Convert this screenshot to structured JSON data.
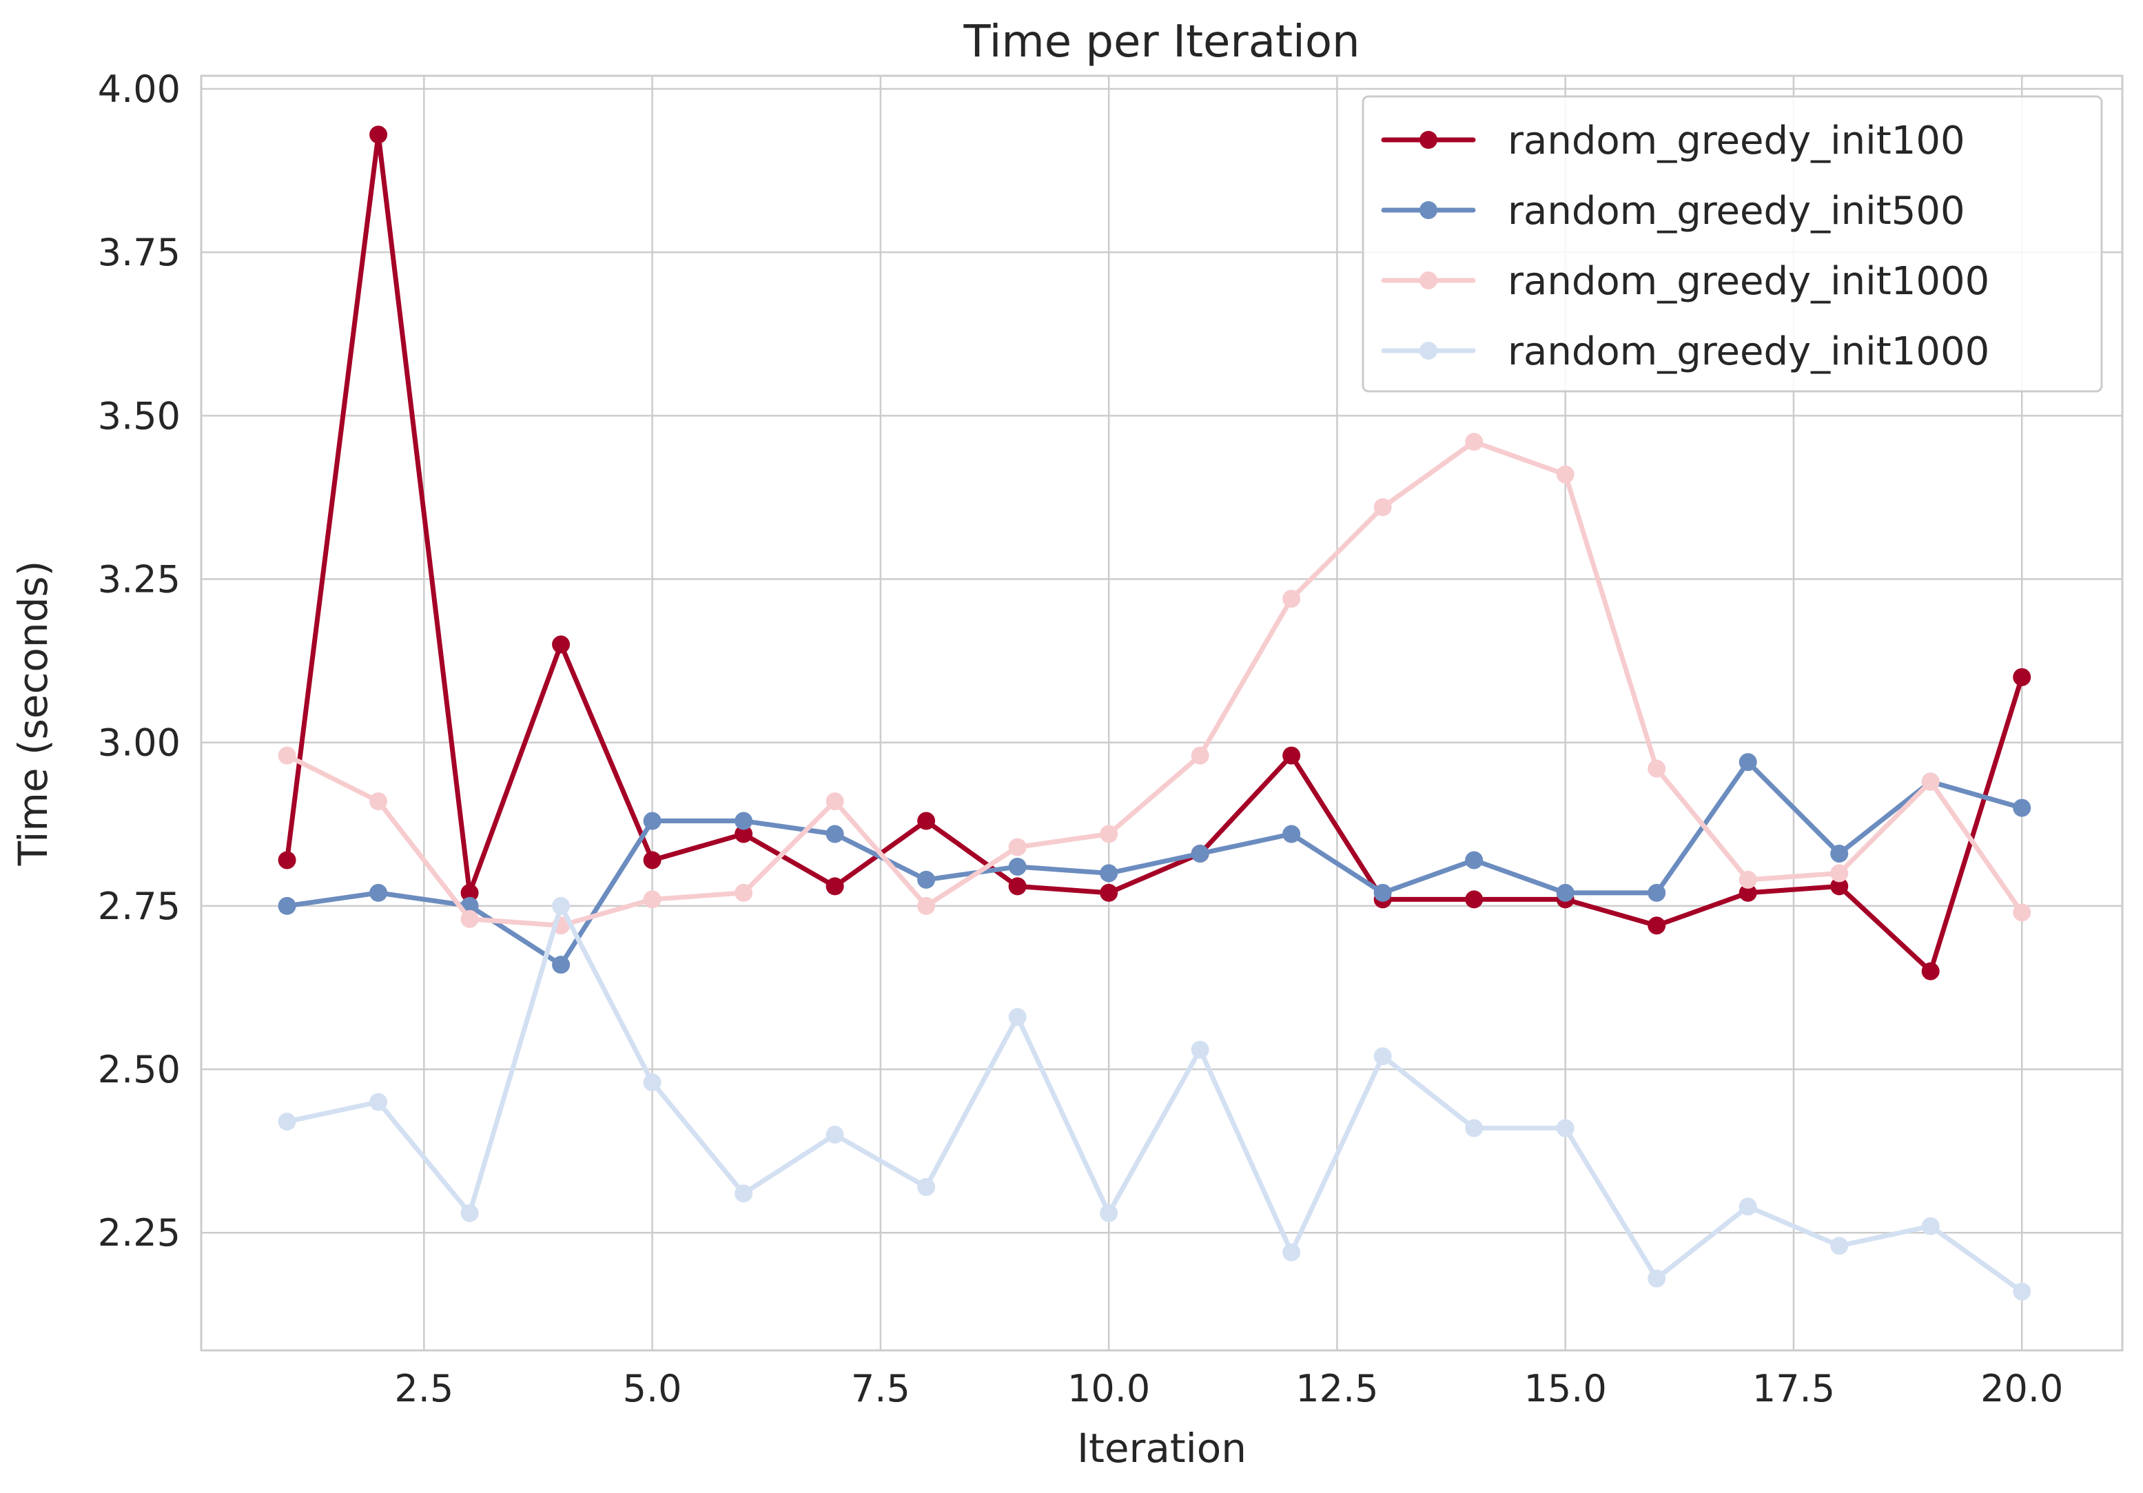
{
  "chart_data": {
    "type": "line",
    "title": "Time per Iteration",
    "xlabel": "Iteration",
    "ylabel": "Time (seconds)",
    "xlim": [
      0.06,
      21.1
    ],
    "ylim": [
      2.07,
      4.02
    ],
    "xticks": [
      2.5,
      5.0,
      7.5,
      10.0,
      12.5,
      15.0,
      17.5,
      20.0
    ],
    "xtick_labels": [
      "2.5",
      "5.0",
      "7.5",
      "10.0",
      "12.5",
      "15.0",
      "17.5",
      "20.0"
    ],
    "yticks": [
      2.25,
      2.5,
      2.75,
      3.0,
      3.25,
      3.5,
      3.75,
      4.0
    ],
    "ytick_labels": [
      "2.25",
      "2.50",
      "2.75",
      "3.00",
      "3.25",
      "3.50",
      "3.75",
      "4.00"
    ],
    "grid": true,
    "legend_position": "top-right",
    "x": [
      1,
      2,
      3,
      4,
      5,
      6,
      7,
      8,
      9,
      10,
      11,
      12,
      13,
      14,
      15,
      16,
      17,
      18,
      19,
      20
    ],
    "series": [
      {
        "name": "random_greedy_init100",
        "color": "#a50026",
        "values": [
          2.82,
          3.93,
          2.77,
          3.15,
          2.82,
          2.86,
          2.78,
          2.88,
          2.78,
          2.77,
          2.83,
          2.98,
          2.76,
          2.76,
          2.76,
          2.72,
          2.77,
          2.78,
          2.65,
          3.1
        ]
      },
      {
        "name": "random_greedy_init500",
        "color": "#6b8cbf",
        "values": [
          2.75,
          2.77,
          2.75,
          2.66,
          2.88,
          2.88,
          2.86,
          2.79,
          2.81,
          2.8,
          2.83,
          2.86,
          2.77,
          2.82,
          2.77,
          2.77,
          2.97,
          2.83,
          2.94,
          2.9
        ]
      },
      {
        "name": "random_greedy_init1000",
        "color": "#f7cccf",
        "values": [
          2.98,
          2.91,
          2.73,
          2.72,
          2.76,
          2.77,
          2.91,
          2.75,
          2.84,
          2.86,
          2.98,
          3.22,
          3.36,
          3.46,
          3.41,
          2.96,
          2.79,
          2.8,
          2.94,
          2.74
        ]
      },
      {
        "name": "random_greedy_init1000",
        "color": "#d3e0f2",
        "values": [
          2.42,
          2.45,
          2.28,
          2.75,
          2.48,
          2.31,
          2.4,
          2.32,
          2.58,
          2.28,
          2.53,
          2.22,
          2.52,
          2.41,
          2.41,
          2.18,
          2.29,
          2.23,
          2.26,
          2.16
        ]
      }
    ]
  }
}
